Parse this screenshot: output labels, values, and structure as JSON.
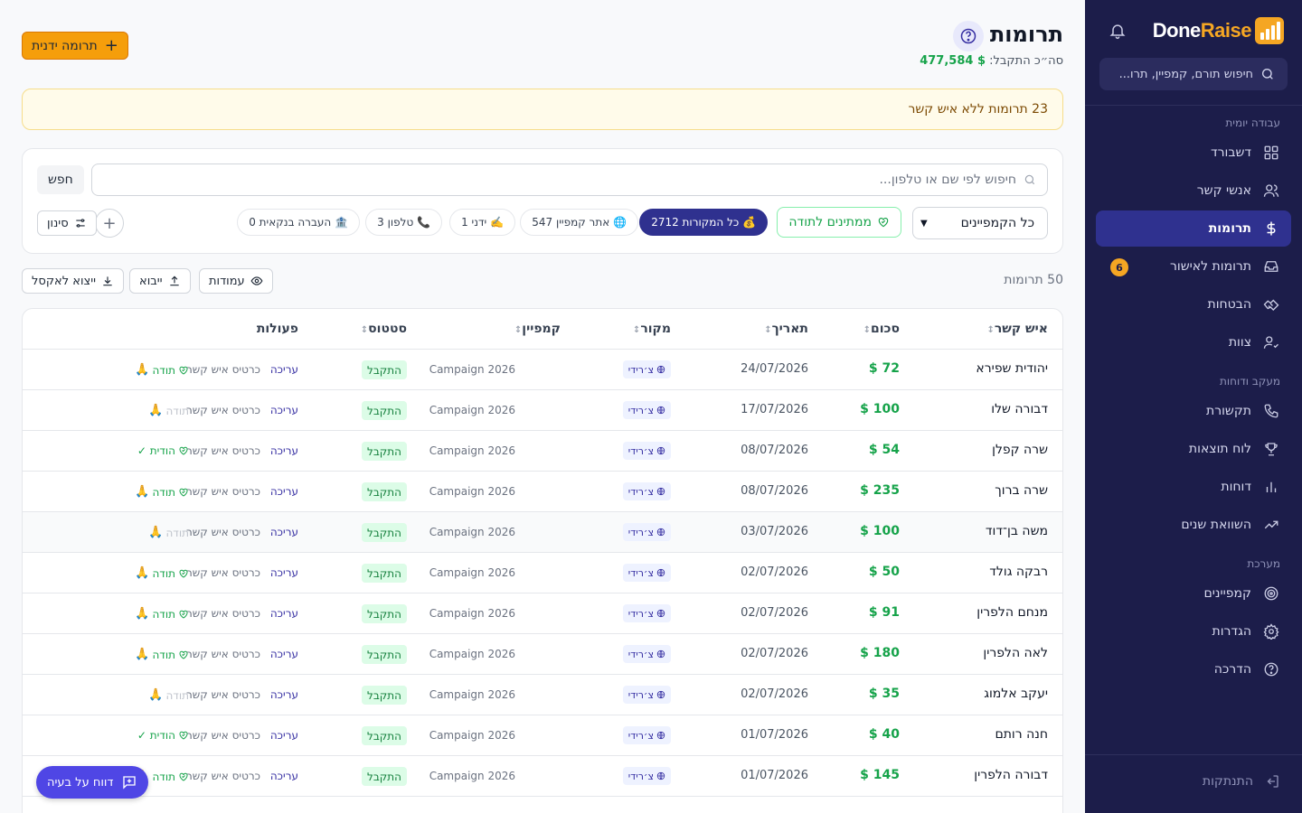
{
  "sidebar": {
    "logo_done": "Done",
    "logo_raise": "Raise",
    "search_placeholder": "חיפוש תורם, קמפיין, תרו...",
    "sections": {
      "daily": "עבודה יומית",
      "tracking": "מעקב ודוחות",
      "system": "מערכת"
    },
    "items": [
      {
        "label": "דשבורד",
        "icon": "dashboard-icon"
      },
      {
        "label": "אנשי קשר",
        "icon": "users-icon"
      },
      {
        "label": "תרומות",
        "icon": "dollar-icon",
        "active": true
      },
      {
        "label": "תרומות לאישור",
        "icon": "inbox-icon",
        "badge": "6"
      },
      {
        "label": "הבטחות",
        "icon": "handshake-icon"
      },
      {
        "label": "צוות",
        "icon": "team-icon"
      },
      {
        "label": "תקשורת",
        "icon": "phone-icon"
      },
      {
        "label": "לוח תוצאות",
        "icon": "trophy-icon"
      },
      {
        "label": "דוחות",
        "icon": "bar-chart-icon"
      },
      {
        "label": "השוואת שנים",
        "icon": "trend-icon"
      },
      {
        "label": "קמפיינים",
        "icon": "target-icon"
      },
      {
        "label": "הגדרות",
        "icon": "gear-icon"
      },
      {
        "label": "הדרכה",
        "icon": "help-icon"
      }
    ],
    "logout": "התנתקות"
  },
  "header": {
    "title": "תרומות",
    "subtotal_label": "סה״כ התקבל:",
    "subtotal_value": "$ 477,584",
    "add_button": "תרומה ידנית"
  },
  "alert": "23 תרומות ללא איש קשר",
  "filters": {
    "search_placeholder": "חיפוש לפי שם או טלפון...",
    "search_button": "חפש",
    "campaign_select": "כל הקמפיינים",
    "awaiting_thanks": "ממתינים לתודה",
    "chips": [
      {
        "label": "💰 כל המקורות 2712",
        "active": true
      },
      {
        "label": "🌐 אתר קמפיין 547"
      },
      {
        "label": "✍️ ידני 1"
      },
      {
        "label": "📞 טלפון 3"
      },
      {
        "label": "🏦 העברה בנקאית 0"
      }
    ],
    "filter_button": "סינון"
  },
  "toolbar": {
    "count": "50 תרומות",
    "columns": "עמודות",
    "import": "ייבוא",
    "export": "ייצוא לאקסל"
  },
  "table": {
    "headers": {
      "name": "איש קשר",
      "amount": "סכום",
      "date": "תאריך",
      "source": "מקור",
      "campaign": "קמפיין",
      "status": "סטטוס",
      "actions": "פעולות"
    },
    "action_edit": "עריכה",
    "action_card": "כרטיס איש קשר",
    "rows": [
      {
        "name": "יהודית שפירא",
        "amount": "$ 72",
        "date": "24/07/2026",
        "source": "צ׳רידי",
        "campaign": "Campaign 2026",
        "status": "התקבל",
        "thanks": "תודה",
        "thanks_state": "on"
      },
      {
        "name": "דבורה שלו",
        "amount": "$ 100",
        "date": "17/07/2026",
        "source": "צ׳רידי",
        "campaign": "Campaign 2026",
        "status": "התקבל",
        "thanks": "תודה",
        "thanks_state": "off"
      },
      {
        "name": "שרה קפלן",
        "amount": "$ 54",
        "date": "08/07/2026",
        "source": "צ׳רידי",
        "campaign": "Campaign 2026",
        "status": "התקבל",
        "thanks": "הודית ✓",
        "thanks_state": "done"
      },
      {
        "name": "שרה ברוך",
        "amount": "$ 235",
        "date": "08/07/2026",
        "source": "צ׳רידי",
        "campaign": "Campaign 2026",
        "status": "התקבל",
        "thanks": "תודה",
        "thanks_state": "on"
      },
      {
        "name": "משה בן־דוד",
        "amount": "$ 100",
        "date": "03/07/2026",
        "source": "צ׳רידי",
        "campaign": "Campaign 2026",
        "status": "התקבל",
        "thanks": "תודה",
        "thanks_state": "off"
      },
      {
        "name": "רבקה גולד",
        "amount": "$ 50",
        "date": "02/07/2026",
        "source": "צ׳רידי",
        "campaign": "Campaign 2026",
        "status": "התקבל",
        "thanks": "תודה",
        "thanks_state": "on"
      },
      {
        "name": "מנחם הלפרין",
        "amount": "$ 91",
        "date": "02/07/2026",
        "source": "צ׳רידי",
        "campaign": "Campaign 2026",
        "status": "התקבל",
        "thanks": "תודה",
        "thanks_state": "on"
      },
      {
        "name": "לאה הלפרין",
        "amount": "$ 180",
        "date": "02/07/2026",
        "source": "צ׳רידי",
        "campaign": "Campaign 2026",
        "status": "התקבל",
        "thanks": "תודה",
        "thanks_state": "on"
      },
      {
        "name": "יעקב אלמוג",
        "amount": "$ 35",
        "date": "02/07/2026",
        "source": "צ׳רידי",
        "campaign": "Campaign 2026",
        "status": "התקבל",
        "thanks": "תודה",
        "thanks_state": "off"
      },
      {
        "name": "חנה רותם",
        "amount": "$ 40",
        "date": "01/07/2026",
        "source": "צ׳רידי",
        "campaign": "Campaign 2026",
        "status": "התקבל",
        "thanks": "הודית ✓",
        "thanks_state": "done"
      },
      {
        "name": "דבורה הלפרין",
        "amount": "$ 145",
        "date": "01/07/2026",
        "source": "צ׳רידי",
        "campaign": "Campaign 2026",
        "status": "התקבל",
        "thanks": "תודה",
        "thanks_state": "on"
      }
    ]
  },
  "report_button": "דווח על בעיה"
}
